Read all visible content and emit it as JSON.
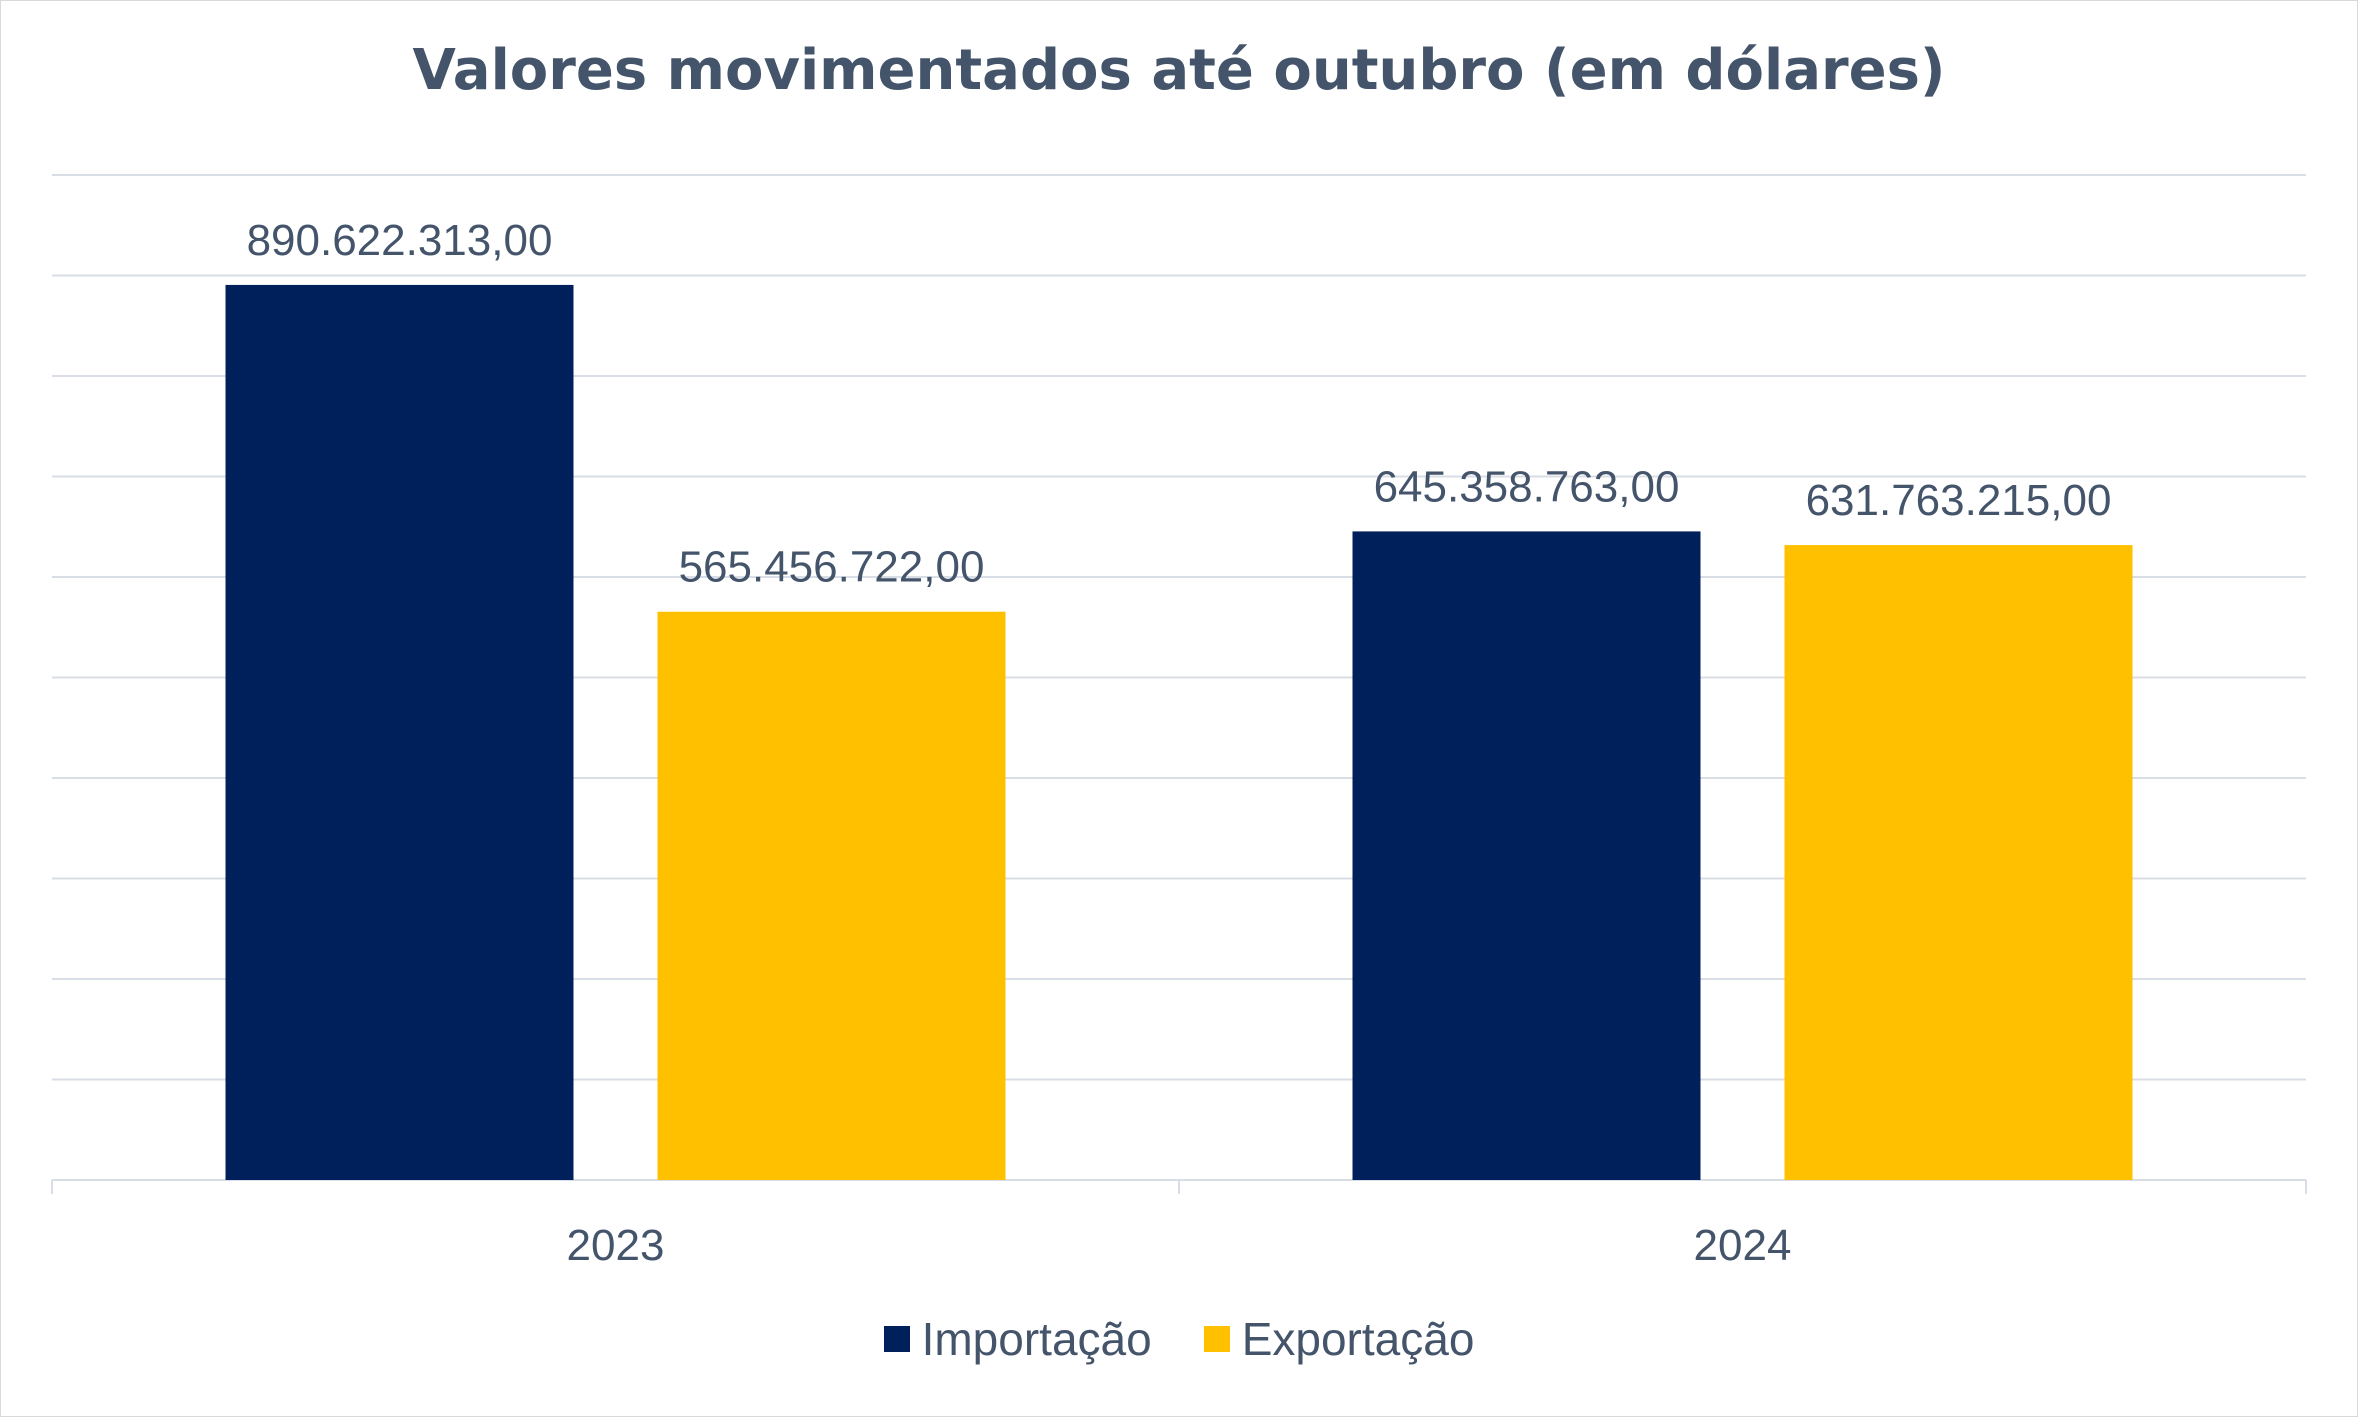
{
  "chart_data": {
    "type": "bar",
    "title": "Valores movimentados até outubro (em dólares)",
    "categories": [
      "2023",
      "2024"
    ],
    "series": [
      {
        "name": "Importação",
        "color": "#00205b",
        "values": [
          890622313.0,
          645358763.0
        ],
        "labels": [
          "890.622.313,00",
          "645.358.763,00"
        ]
      },
      {
        "name": "Exportação",
        "color": "#ffc000",
        "values": [
          565456722.0,
          631763215.0
        ],
        "labels": [
          "565.456.722,00",
          "631.763.215,00"
        ]
      }
    ],
    "ylim": [
      0,
      1000000000
    ],
    "y_gridline_step": 100000000,
    "grid": true,
    "y_axis_labels_visible": false,
    "legend_position": "bottom"
  }
}
